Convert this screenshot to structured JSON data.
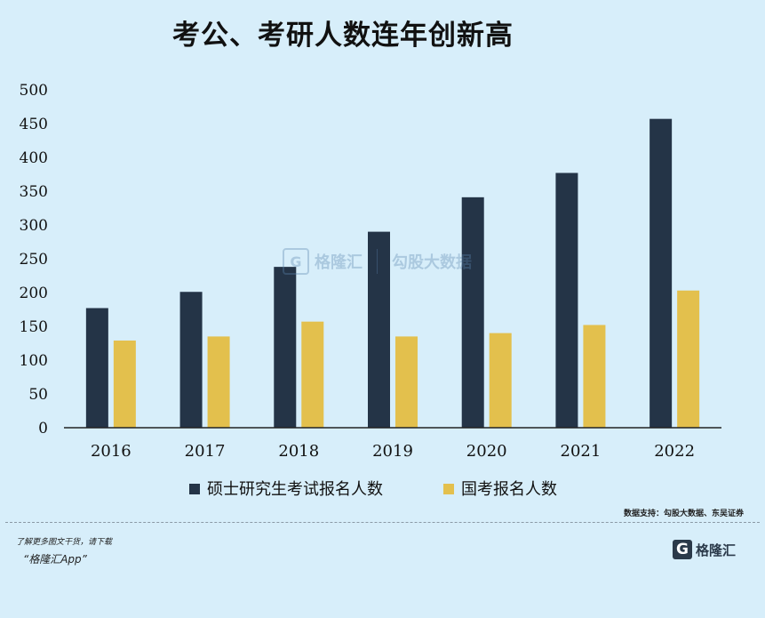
{
  "title": "考公、考研人数连年创新高",
  "chart_data": {
    "type": "bar",
    "title": "考公、考研人数连年创新高",
    "categories": [
      "2016",
      "2017",
      "2018",
      "2019",
      "2020",
      "2021",
      "2022"
    ],
    "series": [
      {
        "name": "硕士研究生考试报名人数",
        "color": "#243447",
        "values": [
          177,
          201,
          238,
          290,
          341,
          377,
          457
        ]
      },
      {
        "name": "国考报名人数",
        "color": "#e3c04d",
        "values": [
          129,
          135,
          157,
          135,
          140,
          152,
          203
        ]
      }
    ],
    "ylim": [
      0,
      500
    ],
    "yticks": [
      0,
      50,
      100,
      150,
      200,
      250,
      300,
      350,
      400,
      450,
      500
    ],
    "xlabel": "",
    "ylabel": "",
    "grid": false,
    "legend_position": "bottom-center"
  },
  "source_note": "数据支持：勾股大数据、东吴证券",
  "footer": {
    "line1": "了解更多图文干货，请下载",
    "line2": "“格隆汇App”",
    "logo_text": "格隆汇"
  },
  "watermark": {
    "left_text": "格隆汇",
    "right_text": "勾股大数据"
  }
}
